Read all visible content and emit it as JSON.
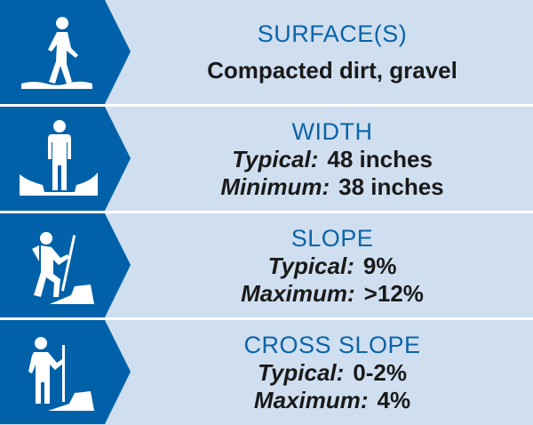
{
  "colors": {
    "dark_blue": "#0061a8",
    "light_blue": "#cfdff0",
    "title_blue": "#0b64a8"
  },
  "rows": [
    {
      "icon": "walking-hiker-icon",
      "title": "SURFACE(S)",
      "value": "Compacted dirt, gravel"
    },
    {
      "icon": "standing-person-width-icon",
      "title": "WIDTH",
      "lines": [
        {
          "label": "Typical:",
          "value": "48 inches"
        },
        {
          "label": "Minimum:",
          "value": "38 inches"
        }
      ]
    },
    {
      "icon": "hiker-uphill-icon",
      "title": "SLOPE",
      "lines": [
        {
          "label": "Typical:",
          "value": "9%"
        },
        {
          "label": "Maximum:",
          "value": ">12%"
        }
      ]
    },
    {
      "icon": "hiker-cross-slope-icon",
      "title": "CROSS SLOPE",
      "lines": [
        {
          "label": "Typical:",
          "value": "0-2%"
        },
        {
          "label": "Maximum:",
          "value": "4%"
        }
      ]
    }
  ]
}
